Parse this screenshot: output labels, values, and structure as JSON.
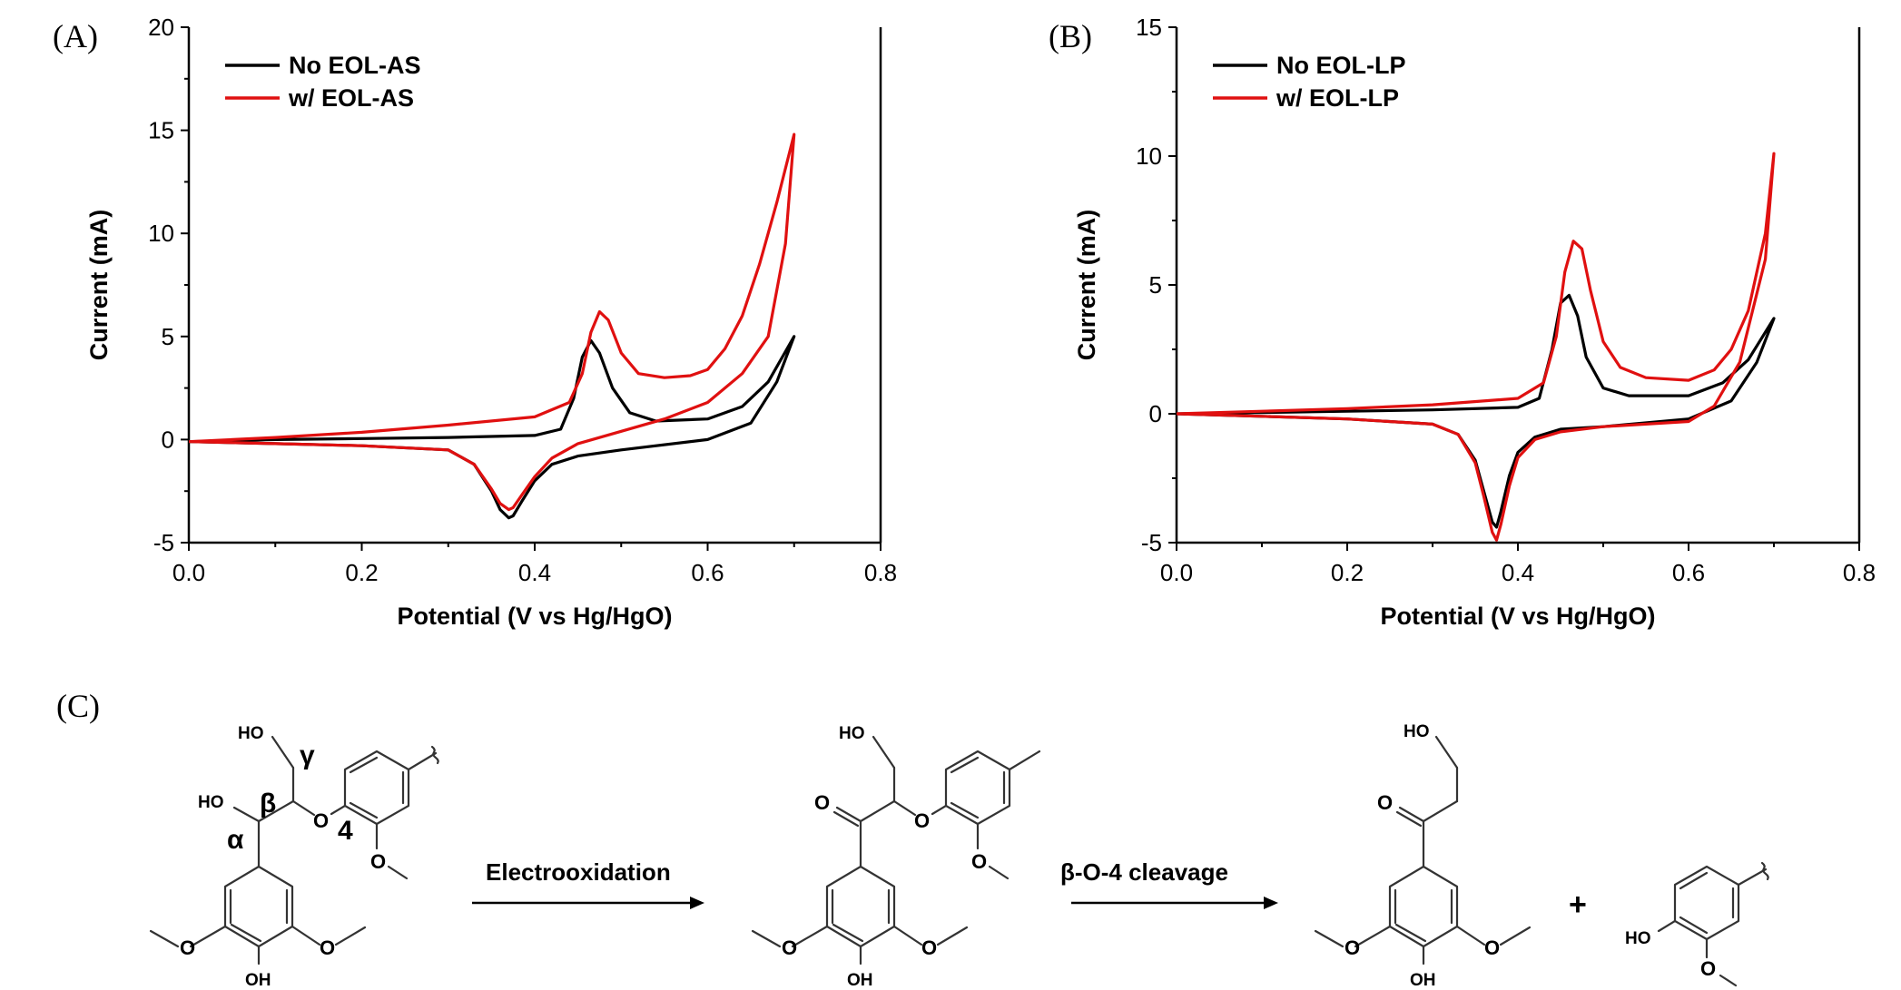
{
  "chart_data": [
    {
      "type": "line",
      "panel": "(A)",
      "xlabel": "Potential (V vs Hg/HgO)",
      "ylabel": "Current (mA)",
      "xlim": [
        0.0,
        0.8
      ],
      "ylim": [
        -5,
        20
      ],
      "xticks": [
        "0.0",
        "0.2",
        "0.4",
        "0.6",
        "0.8"
      ],
      "yticks": [
        "-5",
        "0",
        "5",
        "10",
        "15",
        "20"
      ],
      "legend_position": "top-left",
      "series": [
        {
          "name": "No EOL-AS",
          "color": "#000000",
          "x": [
            0.0,
            0.1,
            0.2,
            0.3,
            0.4,
            0.43,
            0.445,
            0.455,
            0.465,
            0.475,
            0.49,
            0.51,
            0.54,
            0.6,
            0.64,
            0.67,
            0.7,
            0.68,
            0.65,
            0.6,
            0.5,
            0.45,
            0.42,
            0.4,
            0.385,
            0.375,
            0.37,
            0.36,
            0.35,
            0.33,
            0.3,
            0.2,
            0.1,
            0.0
          ],
          "y": [
            -0.1,
            0.0,
            0.05,
            0.1,
            0.2,
            0.5,
            2.0,
            4.0,
            4.8,
            4.2,
            2.5,
            1.3,
            0.9,
            1.0,
            1.6,
            2.8,
            5.0,
            2.8,
            0.8,
            0.0,
            -0.5,
            -0.8,
            -1.2,
            -2.0,
            -3.0,
            -3.7,
            -3.8,
            -3.4,
            -2.5,
            -1.2,
            -0.5,
            -0.3,
            -0.2,
            -0.1
          ]
        },
        {
          "name": "w/ EOL-AS",
          "color": "#e01010",
          "x": [
            0.0,
            0.1,
            0.2,
            0.3,
            0.4,
            0.44,
            0.455,
            0.465,
            0.475,
            0.485,
            0.5,
            0.52,
            0.55,
            0.58,
            0.6,
            0.62,
            0.64,
            0.66,
            0.68,
            0.7,
            0.69,
            0.67,
            0.64,
            0.6,
            0.55,
            0.5,
            0.45,
            0.42,
            0.4,
            0.385,
            0.375,
            0.37,
            0.36,
            0.35,
            0.33,
            0.3,
            0.2,
            0.1,
            0.0
          ],
          "y": [
            -0.1,
            0.1,
            0.35,
            0.7,
            1.1,
            1.8,
            3.2,
            5.2,
            6.2,
            5.8,
            4.2,
            3.2,
            3.0,
            3.1,
            3.4,
            4.4,
            6.0,
            8.5,
            11.5,
            14.8,
            9.5,
            5.0,
            3.2,
            1.8,
            1.0,
            0.4,
            -0.2,
            -0.9,
            -1.8,
            -2.7,
            -3.3,
            -3.4,
            -3.1,
            -2.4,
            -1.2,
            -0.5,
            -0.3,
            -0.2,
            -0.1
          ]
        }
      ]
    },
    {
      "type": "line",
      "panel": "(B)",
      "xlabel": "Potential (V vs Hg/HgO)",
      "ylabel": "Current (mA)",
      "xlim": [
        0.0,
        0.8
      ],
      "ylim": [
        -5,
        15
      ],
      "xticks": [
        "0.0",
        "0.2",
        "0.4",
        "0.6",
        "0.8"
      ],
      "yticks": [
        "-5",
        "0",
        "5",
        "10",
        "15"
      ],
      "legend_position": "top-left",
      "series": [
        {
          "name": "No EOL-LP",
          "color": "#000000",
          "x": [
            0.0,
            0.1,
            0.2,
            0.3,
            0.4,
            0.425,
            0.44,
            0.45,
            0.46,
            0.47,
            0.48,
            0.5,
            0.53,
            0.6,
            0.64,
            0.67,
            0.7,
            0.68,
            0.65,
            0.6,
            0.5,
            0.45,
            0.42,
            0.4,
            0.39,
            0.38,
            0.375,
            0.37,
            0.36,
            0.35,
            0.33,
            0.3,
            0.2,
            0.1,
            0.0
          ],
          "y": [
            0.0,
            0.05,
            0.1,
            0.15,
            0.25,
            0.6,
            2.5,
            4.3,
            4.6,
            3.8,
            2.2,
            1.0,
            0.7,
            0.7,
            1.2,
            2.1,
            3.7,
            2.0,
            0.5,
            -0.2,
            -0.5,
            -0.6,
            -0.9,
            -1.5,
            -2.4,
            -3.8,
            -4.4,
            -4.2,
            -3.0,
            -1.8,
            -0.8,
            -0.4,
            -0.2,
            -0.1,
            0.0
          ]
        },
        {
          "name": "w/ EOL-LP",
          "color": "#e01010",
          "x": [
            0.0,
            0.1,
            0.2,
            0.3,
            0.4,
            0.43,
            0.445,
            0.455,
            0.465,
            0.475,
            0.485,
            0.5,
            0.52,
            0.55,
            0.6,
            0.63,
            0.65,
            0.67,
            0.69,
            0.7,
            0.69,
            0.66,
            0.63,
            0.6,
            0.5,
            0.45,
            0.42,
            0.4,
            0.39,
            0.38,
            0.375,
            0.37,
            0.36,
            0.35,
            0.33,
            0.3,
            0.2,
            0.1,
            0.0
          ],
          "y": [
            0.0,
            0.1,
            0.2,
            0.35,
            0.6,
            1.2,
            3.0,
            5.5,
            6.7,
            6.4,
            4.8,
            2.8,
            1.8,
            1.4,
            1.3,
            1.7,
            2.5,
            4.0,
            7.0,
            10.1,
            6.0,
            2.0,
            0.3,
            -0.3,
            -0.5,
            -0.7,
            -1.0,
            -1.7,
            -2.8,
            -4.3,
            -4.9,
            -4.6,
            -3.2,
            -1.9,
            -0.8,
            -0.4,
            -0.2,
            -0.1,
            0.0
          ]
        }
      ]
    }
  ],
  "panel_c": {
    "label": "(C)",
    "arrow1_label": "Electrooxidation",
    "arrow2_label": "β-O-4 cleavage",
    "plus": "+",
    "atom_labels": {
      "ho": "HO",
      "oh": "OH",
      "o": "O",
      "gamma": "γ",
      "beta": "β",
      "alpha": "α",
      "four": "4"
    }
  }
}
